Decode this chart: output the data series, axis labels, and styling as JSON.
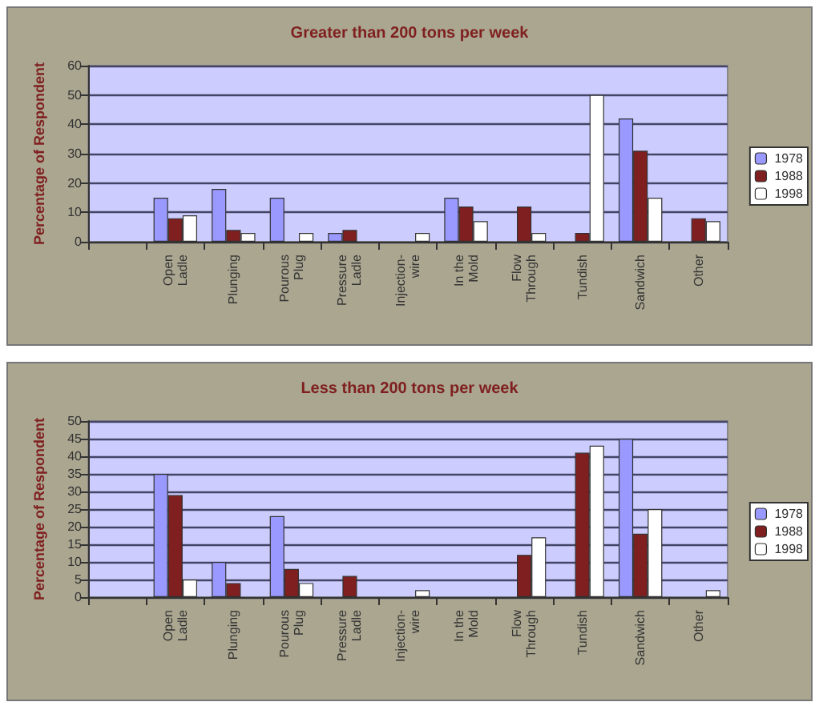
{
  "chart_data": [
    {
      "type": "bar",
      "title": "Greater than 200 tons per week",
      "ylabel": "Percentage of Respondent",
      "categories": [
        null,
        "Open Ladle",
        "Plunging",
        "Pourous Plug",
        "Pressure Ladle",
        "Injection-wire",
        "In the Mold",
        "Flow Through",
        "Tundish",
        "Sandwich",
        "Other"
      ],
      "series": [
        {
          "name": "1978",
          "color": "#9999ff",
          "values": [
            null,
            15,
            18,
            15,
            3,
            null,
            15,
            null,
            null,
            42,
            null
          ]
        },
        {
          "name": "1988",
          "color": "#7f1f1f",
          "values": [
            null,
            8,
            4,
            null,
            4,
            null,
            12,
            12,
            3,
            31,
            8
          ]
        },
        {
          "name": "1998",
          "color": "#ffffff",
          "values": [
            null,
            9,
            3,
            3,
            null,
            3,
            7,
            3,
            50,
            15,
            7
          ]
        }
      ],
      "ylim": [
        0,
        60
      ],
      "yticks": [
        0,
        10,
        20,
        30,
        40,
        50,
        60
      ],
      "grid": "y",
      "legend": "right"
    },
    {
      "type": "bar",
      "title": "Less than 200 tons per week",
      "ylabel": "Percentage of Respondent",
      "categories": [
        null,
        "Open Ladle",
        "Plunging",
        "Pourous Plug",
        "Pressure Ladle",
        "Injection-wire",
        "In the Mold",
        "Flow Through",
        "Tundish",
        "Sandwich",
        "Other"
      ],
      "series": [
        {
          "name": "1978",
          "color": "#9999ff",
          "values": [
            null,
            35,
            10,
            23,
            null,
            null,
            null,
            null,
            null,
            45,
            null
          ]
        },
        {
          "name": "1988",
          "color": "#7f1f1f",
          "values": [
            null,
            29,
            4,
            8,
            6,
            null,
            null,
            12,
            41,
            18,
            null
          ]
        },
        {
          "name": "1998",
          "color": "#ffffff",
          "values": [
            null,
            5,
            null,
            4,
            null,
            2,
            null,
            17,
            43,
            25,
            2
          ]
        }
      ],
      "ylim": [
        0,
        50
      ],
      "yticks": [
        0,
        5,
        10,
        15,
        20,
        25,
        30,
        35,
        40,
        45,
        50
      ],
      "grid": "y",
      "legend": "right"
    }
  ]
}
